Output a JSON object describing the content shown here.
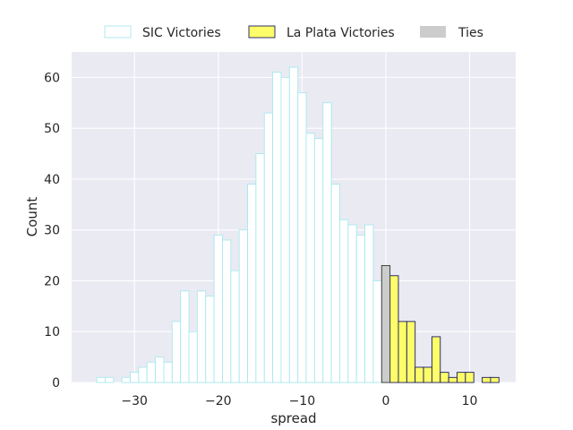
{
  "chart_data": {
    "type": "bar",
    "xlabel": "spread",
    "ylabel": "Count",
    "xlim": [
      -37.5,
      15.5
    ],
    "ylim": [
      0,
      65
    ],
    "x_ticks": [
      -30,
      -20,
      -10,
      0,
      10
    ],
    "x_tick_labels": [
      "−30",
      "−20",
      "−10",
      "0",
      "10"
    ],
    "y_ticks": [
      0,
      10,
      20,
      30,
      40,
      50,
      60
    ],
    "grid": true,
    "legend_position": "top-center",
    "colors": {
      "background": "#eaeaf2",
      "grid": "#ffffff",
      "sic_fill": "#ffffff",
      "sic_edge": "#a8e8f0",
      "la_plata_fill": "#fdfd6a",
      "la_plata_edge": "#1c1a5e",
      "ties_fill": "#cccccc",
      "ties_edge": "#333333"
    },
    "series": [
      {
        "name": "SIC Victories",
        "bin_width": 1,
        "x": [
          -34,
          -33,
          -32,
          -31,
          -30,
          -29,
          -28,
          -27,
          -26,
          -25,
          -24,
          -23,
          -22,
          -21,
          -20,
          -19,
          -18,
          -17,
          -16,
          -15,
          -14,
          -13,
          -12,
          -11,
          -10,
          -9,
          -8,
          -7,
          -6,
          -5,
          -4,
          -3,
          -2,
          -1
        ],
        "values": [
          1,
          1,
          0,
          1,
          2,
          3,
          4,
          5,
          4,
          12,
          18,
          10,
          18,
          17,
          29,
          28,
          22,
          30,
          39,
          45,
          53,
          61,
          60,
          62,
          57,
          49,
          48,
          55,
          39,
          32,
          31,
          29,
          31,
          20
        ]
      },
      {
        "name": "La Plata Victories",
        "bin_width": 1,
        "x": [
          1,
          2,
          3,
          4,
          5,
          6,
          7,
          8,
          9,
          10,
          11,
          12,
          13
        ],
        "values": [
          21,
          12,
          12,
          3,
          3,
          9,
          2,
          1,
          2,
          2,
          0,
          1,
          1
        ]
      },
      {
        "name": "Ties",
        "bin_width": 1,
        "x": [
          0
        ],
        "values": [
          23
        ]
      }
    ]
  }
}
